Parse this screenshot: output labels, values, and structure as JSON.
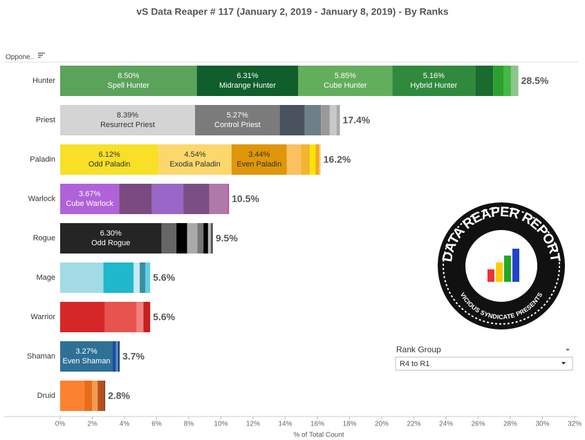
{
  "chart_data": {
    "type": "stacked_bar",
    "title": "vS Data Reaper #  117 (January 2, 2019 - January 8, 2019) - By Ranks",
    "y_header": "Oppone..",
    "x_label": "% of Total Count",
    "xlim": [
      0,
      32
    ],
    "xticks": [
      {
        "value": 0,
        "label": "0%"
      },
      {
        "value": 2,
        "label": "2%"
      },
      {
        "value": 4,
        "label": "4%"
      },
      {
        "value": 6,
        "label": "6%"
      },
      {
        "value": 8,
        "label": "8%"
      },
      {
        "value": 10,
        "label": "10%"
      },
      {
        "value": 12,
        "label": "12%"
      },
      {
        "value": 14,
        "label": "14%"
      },
      {
        "value": 16,
        "label": "16%"
      },
      {
        "value": 18,
        "label": "18%"
      },
      {
        "value": 20,
        "label": "20%"
      },
      {
        "value": 22,
        "label": "22%"
      },
      {
        "value": 24,
        "label": "24%"
      },
      {
        "value": 26,
        "label": "26%"
      },
      {
        "value": 28,
        "label": "28%"
      },
      {
        "value": 30,
        "label": "30%"
      },
      {
        "value": 32,
        "label": "32%"
      }
    ],
    "categories": [
      {
        "name": "Hunter",
        "total": 28.5,
        "total_label": "28.5%",
        "segments": [
          {
            "name": "Spell Hunter",
            "value": 8.5,
            "value_label": "8.50%",
            "color": "#5ba35b"
          },
          {
            "name": "Midrange Hunter",
            "value": 6.31,
            "value_label": "6.31%",
            "color": "#0f5e2b"
          },
          {
            "name": "Cube Hunter",
            "value": 5.85,
            "value_label": "5.85%",
            "color": "#63ae5d"
          },
          {
            "name": "Hybrid Hunter",
            "value": 5.16,
            "value_label": "5.16%",
            "color": "#2f8a3e"
          },
          {
            "value": 1.11,
            "color": "#1a6b2e"
          },
          {
            "value": 0.64,
            "color": "#2ca02c"
          },
          {
            "value": 0.47,
            "color": "#44b845"
          },
          {
            "value": 0.46,
            "color": "#8cc48c"
          }
        ]
      },
      {
        "name": "Priest",
        "total": 17.4,
        "total_label": "17.4%",
        "segments": [
          {
            "name": "Resurrect Priest",
            "value": 8.39,
            "value_label": "8.39%",
            "color": "#d4d4d4"
          },
          {
            "name": "Control Priest",
            "value": 5.27,
            "value_label": "5.27%",
            "color": "#7b7b7b"
          },
          {
            "value": 1.55,
            "color": "#4a5260"
          },
          {
            "value": 1.01,
            "color": "#6f7f88"
          },
          {
            "value": 0.55,
            "color": "#9a9a9a"
          },
          {
            "value": 0.42,
            "color": "#c8c8c8"
          },
          {
            "value": 0.21,
            "color": "#a8a8a8"
          }
        ]
      },
      {
        "name": "Paladin",
        "total": 16.2,
        "total_label": "16.2%",
        "segments": [
          {
            "name": "Odd Paladin",
            "value": 6.12,
            "value_label": "6.12%",
            "color": "#f8e027"
          },
          {
            "name": "Exodia Paladin",
            "value": 4.54,
            "value_label": "4.54%",
            "color": "#fcd76c"
          },
          {
            "name": "Even Paladin",
            "value": 3.44,
            "value_label": "3.44%",
            "color": "#e0960a"
          },
          {
            "value": 0.89,
            "color": "#fbc160"
          },
          {
            "value": 0.54,
            "color": "#f2b531"
          },
          {
            "value": 0.36,
            "color": "#ffe500"
          },
          {
            "value": 0.22,
            "color": "#f5a623"
          },
          {
            "value": 0.09,
            "color": "#f0d080"
          }
        ]
      },
      {
        "name": "Warlock",
        "total": 10.5,
        "total_label": "10.5%",
        "segments": [
          {
            "name": "Cube Warlock",
            "value": 3.67,
            "value_label": "3.67%",
            "color": "#b062d8"
          },
          {
            "value": 2.04,
            "color": "#7a4a80"
          },
          {
            "value": 1.95,
            "color": "#9a66c8"
          },
          {
            "value": 1.61,
            "color": "#7c4e86"
          },
          {
            "value": 1.15,
            "color": "#b07aa8"
          },
          {
            "value": 0.08,
            "color": "#c03aa0"
          }
        ]
      },
      {
        "name": "Rogue",
        "total": 9.5,
        "total_label": "9.5%",
        "segments": [
          {
            "name": "Odd Rogue",
            "value": 6.3,
            "value_label": "6.30%",
            "color": "#252525"
          },
          {
            "value": 0.93,
            "color": "#666666"
          },
          {
            "value": 0.67,
            "color": "#000000"
          },
          {
            "value": 0.63,
            "color": "#aaaaaa"
          },
          {
            "value": 0.38,
            "color": "#777777"
          },
          {
            "value": 0.29,
            "color": "#000000"
          },
          {
            "value": 0.17,
            "color": "#bbbbbb"
          },
          {
            "value": 0.13,
            "color": "#555555"
          }
        ]
      },
      {
        "name": "Mage",
        "total": 5.6,
        "total_label": "5.6%",
        "segments": [
          {
            "value": 2.69,
            "color": "#a2dbe6"
          },
          {
            "value": 1.88,
            "color": "#1fb8cc"
          },
          {
            "value": 0.38,
            "color": "#c7e9f0"
          },
          {
            "value": 0.34,
            "color": "#3a8fa0"
          },
          {
            "value": 0.31,
            "color": "#5fd0e8"
          }
        ]
      },
      {
        "name": "Warrior",
        "total": 5.6,
        "total_label": "5.6%",
        "segments": [
          {
            "value": 2.78,
            "color": "#d62728"
          },
          {
            "value": 1.97,
            "color": "#e8524f"
          },
          {
            "value": 0.43,
            "color": "#f08080"
          },
          {
            "value": 0.42,
            "color": "#c81e1e"
          }
        ]
      },
      {
        "name": "Shaman",
        "total": 3.7,
        "total_label": "3.7%",
        "segments": [
          {
            "name": "Even Shaman",
            "value": 3.27,
            "value_label": "3.27%",
            "color": "#2f7096"
          },
          {
            "value": 0.2,
            "color": "#1f4aa0"
          },
          {
            "value": 0.13,
            "color": "#4a90c0"
          },
          {
            "value": 0.1,
            "color": "#1a3a70"
          }
        ]
      },
      {
        "name": "Druid",
        "total": 2.8,
        "total_label": "2.8%",
        "segments": [
          {
            "value": 1.51,
            "color": "#fa8231"
          },
          {
            "value": 0.47,
            "color": "#e86c1a"
          },
          {
            "value": 0.35,
            "color": "#f39c4e"
          },
          {
            "value": 0.39,
            "color": "#b85020"
          },
          {
            "value": 0.08,
            "color": "#7a3a10"
          }
        ]
      }
    ]
  },
  "filter": {
    "title": "Rank Group",
    "selected": "R4 to R1"
  },
  "logo": {
    "title": "DATA REAPER REPORT",
    "subtitle": "VICIOUS SYNDICATE PRESENTS"
  }
}
